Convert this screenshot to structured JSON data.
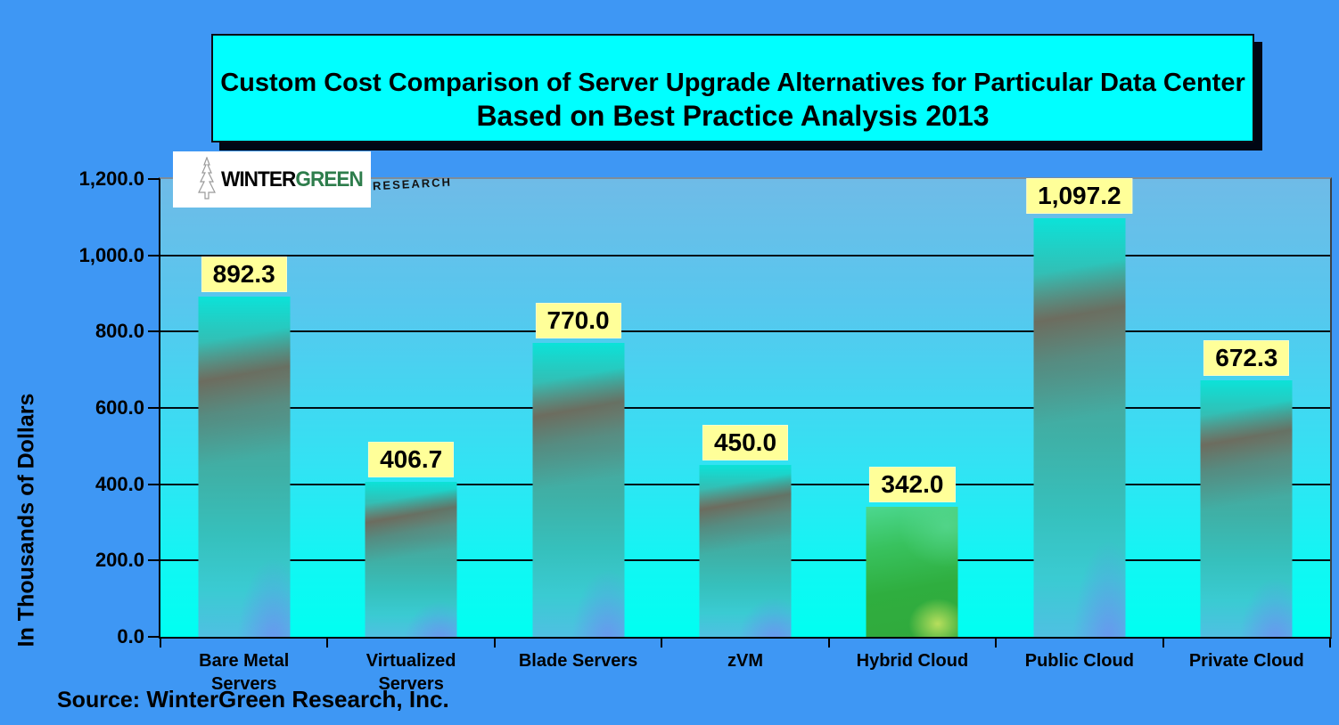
{
  "title": {
    "line1": "Custom Cost Comparison of Server Upgrade Alternatives for Particular Data Center",
    "line2": "Based on Best Practice Analysis 2013"
  },
  "logo": {
    "word1": "WINTER",
    "word2": "GREEN",
    "word3": "RESEARCH"
  },
  "source": {
    "prefix": "Source:",
    "text": "WinterGreen Research, Inc."
  },
  "chart_data": {
    "type": "bar",
    "title": "Custom Cost Comparison of Server Upgrade Alternatives for Particular Data Center - Based on Best Practice Analysis 2013",
    "ylabel": "In Thousands of Dollars",
    "ylim": [
      0,
      1200
    ],
    "ytick_interval": 200,
    "ytick_labels": [
      "1,200.0",
      "1,000.0",
      "800.0",
      "600.0",
      "400.0",
      "200.0",
      "0.0"
    ],
    "grid": true,
    "legend": false,
    "categories": [
      "Bare Metal Servers",
      "Virtualized Servers",
      "Blade Servers",
      "zVM",
      "Hybrid Cloud",
      "Public Cloud",
      "Private Cloud"
    ],
    "category_label_lines": [
      [
        "Bare Metal",
        "Servers"
      ],
      [
        "Virtualized",
        "Servers"
      ],
      [
        "Blade Servers"
      ],
      [
        "zVM"
      ],
      [
        "Hybrid Cloud"
      ],
      [
        "Public Cloud"
      ],
      [
        "Private Cloud"
      ]
    ],
    "values": [
      892.3,
      406.7,
      770.0,
      450.0,
      342.0,
      1097.2,
      672.3
    ],
    "value_labels": [
      "892.3",
      "406.7",
      "770.0",
      "450.0",
      "342.0",
      "1,097.2",
      "672.3"
    ],
    "bar_style": [
      "cyan",
      "cyan",
      "cyan",
      "cyan",
      "green",
      "cyan",
      "cyan"
    ]
  },
  "colors": {
    "page_background": "#3E97F4",
    "title_box_background": "#00FFFF",
    "plot_gradient_top": "#6FBBE7",
    "plot_gradient_bottom": "#00FFF2",
    "value_label_background": "#FFFF99",
    "bar_cyan": "#3FB0A6",
    "bar_green": "#2FAE3F",
    "gridline": "#000000",
    "logo_green": "#2E7D4C",
    "text": "#000000"
  }
}
